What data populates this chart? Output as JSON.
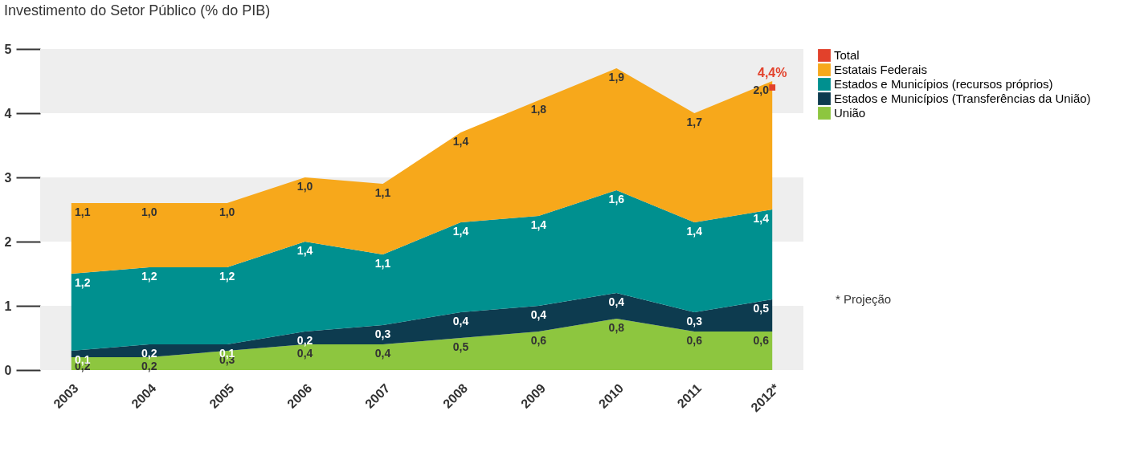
{
  "chart_data": {
    "type": "area",
    "title": "Investimento do Setor Público (% do PIB)",
    "categories": [
      "2003",
      "2004",
      "2005",
      "2006",
      "2007",
      "2008",
      "2009",
      "2010",
      "2011",
      "2012*"
    ],
    "stacked": true,
    "series": [
      {
        "name": "União",
        "color": "#8dc63f",
        "values": [
          0.2,
          0.2,
          0.3,
          0.4,
          0.4,
          0.5,
          0.6,
          0.8,
          0.6,
          0.6
        ],
        "value_labels": [
          "0,2",
          "0,2",
          "0,3",
          "0,4",
          "0,4",
          "0,5",
          "0,6",
          "0,8",
          "0,6",
          "0,6"
        ]
      },
      {
        "name": "Estados e Municípios (Transferências da União)",
        "color": "#0d3b4f",
        "values": [
          0.1,
          0.2,
          0.1,
          0.2,
          0.3,
          0.4,
          0.4,
          0.4,
          0.3,
          0.5
        ],
        "value_labels": [
          "0,1",
          "0,2",
          "0,1",
          "0,2",
          "0,3",
          "0,4",
          "0,4",
          "0,4",
          "0,3",
          "0,5"
        ]
      },
      {
        "name": "Estados e Municípios (recursos próprios)",
        "color": "#00908f",
        "values": [
          1.2,
          1.2,
          1.2,
          1.4,
          1.1,
          1.4,
          1.4,
          1.6,
          1.4,
          1.4
        ],
        "value_labels": [
          "1,2",
          "1,2",
          "1,2",
          "1,4",
          "1,1",
          "1,4",
          "1,4",
          "1,6",
          "1,4",
          "1,4"
        ]
      },
      {
        "name": "Estatais Federais",
        "color": "#f7a81b",
        "values": [
          1.1,
          1.0,
          1.0,
          1.0,
          1.1,
          1.4,
          1.8,
          1.9,
          1.7,
          2.0
        ],
        "value_labels": [
          "1,1",
          "1,0",
          "1,0",
          "1,0",
          "1,1",
          "1,4",
          "1,8",
          "1,9",
          "1,7",
          "2,0"
        ]
      },
      {
        "name": "Total",
        "type": "scatter",
        "marker": "square",
        "color": "#e2412b",
        "values": [
          null,
          null,
          null,
          null,
          null,
          null,
          null,
          null,
          null,
          4.4
        ],
        "value_labels": [
          null,
          null,
          null,
          null,
          null,
          null,
          null,
          null,
          null,
          "4,4%"
        ]
      }
    ],
    "ylim": [
      0,
      5
    ],
    "yticks": [
      0,
      1,
      2,
      3,
      4,
      5
    ],
    "grid": false,
    "legend": "right",
    "bands": [
      {
        "axis": "y",
        "from": 0,
        "to": 1,
        "color": "#eeeeee"
      },
      {
        "axis": "y",
        "from": 2,
        "to": 3,
        "color": "#eeeeee"
      },
      {
        "axis": "y",
        "from": 4,
        "to": 5,
        "color": "#eeeeee"
      }
    ],
    "annotations": [
      "* Projeção"
    ]
  }
}
